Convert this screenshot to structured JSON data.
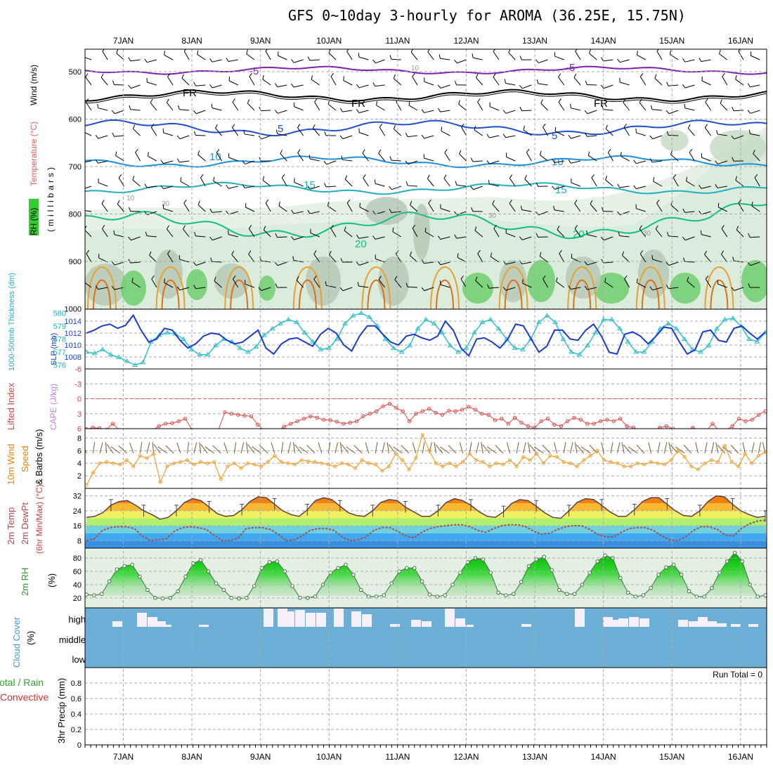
{
  "title": "GFS 0~10day 3-hourly for AROMA (36.25E, 15.75N)",
  "days": [
    "7JAN",
    "8JAN",
    "9JAN",
    "10JAN",
    "11JAN",
    "12JAN",
    "13JAN",
    "14JAN",
    "15JAN",
    "16JAN"
  ],
  "panels": {
    "upper": {
      "ylabel_rh": "RH (%)",
      "ylabel_temp": "Temperature (°C)",
      "ylabel_wind": "Wind (m/s)",
      "ylabel_p": "(millibars)",
      "p_ticks": [
        500,
        600,
        700,
        800,
        900,
        1000
      ],
      "isotherm_labels": [
        "-5",
        "FR",
        "5",
        "10",
        "15",
        "20"
      ],
      "rh_labels": [
        "10",
        "30"
      ]
    },
    "slp": {
      "ylabel_thick": "1000-500mb Thickness (dm)",
      "ylabel_slp": "SLP (mb)",
      "left_ticks": [
        576,
        577,
        578,
        579,
        580
      ],
      "right_ticks": [
        1008,
        1010,
        1012,
        1014
      ]
    },
    "cape": {
      "ylabel_li": "Lifted Index",
      "ylabel_cape": "CAPE (J/kg)",
      "ticks": [
        6,
        3,
        0,
        -3,
        -6
      ],
      "li_values": [
        6.1,
        5.8,
        5.9,
        6.2,
        5.0,
        6.3,
        6.4,
        6.5,
        6.5,
        6.4,
        6.3,
        5.5,
        5.0,
        4.9,
        4.5,
        4.0,
        6.2,
        6.4,
        6.3,
        6.5,
        6.3,
        2.7,
        3.0,
        3.2,
        3.4,
        3.5,
        5.2,
        6.4,
        6.3,
        6.4,
        5.6,
        5.0,
        4.5,
        4.0,
        3.5,
        3.8,
        4.2,
        4.3,
        4.6,
        5.0,
        4.8,
        4.5,
        3.5,
        3.0,
        2.5,
        1.5,
        1.0,
        1.8,
        2.5,
        4.5,
        3.0,
        2.5,
        2.0,
        2.8,
        3.2,
        2.4,
        2.5,
        2.2,
        1.6,
        2.2,
        3.0,
        3.2,
        4.3,
        4.0,
        5.0,
        3.8,
        4.8,
        5.5,
        5.8,
        4.5,
        4.0,
        5.2,
        5.5,
        4.5,
        3.8,
        4.2,
        5.0,
        5.0,
        4.5,
        4.2,
        4.5,
        4.0,
        5.5,
        5.8,
        6.4,
        6.5,
        6.3,
        5.8,
        5.5,
        6.0,
        6.4,
        6.4,
        5.8,
        6.3,
        6.5,
        5.0,
        6.4,
        6.3,
        5.5,
        4.0,
        4.5,
        4.2,
        3.2,
        2.5
      ]
    },
    "wind10m": {
      "ylabel_a": "10m Wind",
      "ylabel_b": "Speed",
      "ylabel_c": "& Barbs (m/s)",
      "ticks": [
        2,
        4,
        6,
        8
      ],
      "values": [
        0.5,
        2.5,
        4.0,
        4.2,
        4.0,
        3.8,
        4.5,
        3.5,
        5.2,
        4.8,
        5.5,
        1.0,
        3.5,
        4.0,
        4.2,
        4.5,
        3.8,
        4.2,
        4.0,
        4.2,
        1.5,
        3.5,
        4.0,
        3.2,
        4.0,
        3.8,
        3.5,
        4.2,
        5.2,
        4.2,
        4.0,
        3.8,
        4.5,
        4.3,
        4.2,
        4.0,
        3.8,
        3.5,
        4.0,
        3.8,
        3.2,
        4.5,
        4.0,
        3.8,
        2.8,
        3.5,
        5.5,
        4.5,
        3.0,
        4.8,
        8.5,
        6.0,
        4.0,
        3.5,
        4.0,
        3.5,
        4.2,
        5.5,
        4.5,
        4.2,
        3.5,
        4.0,
        3.8,
        4.5,
        3.5,
        5.0,
        4.5,
        5.5,
        4.0,
        5.2,
        5.0,
        4.2,
        4.0,
        3.5,
        4.5,
        5.2,
        6.0,
        4.5,
        4.2,
        4.0,
        3.5,
        3.5,
        4.0,
        3.8,
        4.2,
        4.0,
        3.8,
        4.5,
        6.0,
        5.0,
        3.5,
        3.0,
        4.0,
        4.5,
        4.2,
        6.8,
        4.2,
        3.5,
        5.5,
        4.0,
        5.2,
        5.8
      ]
    },
    "temp": {
      "ylabel_a": "2m Temp",
      "ylabel_b": "2m DewPt",
      "ylabel_c": "(6hr Min/Max) (°C)",
      "ticks": [
        8,
        16,
        24,
        32
      ]
    },
    "rh2m": {
      "ylabel": "2m RH",
      "unit": "(%)",
      "ticks": [
        20,
        40,
        60,
        80
      ],
      "values": [
        25,
        24,
        26,
        45,
        63,
        68,
        70,
        52,
        32,
        20,
        19,
        20,
        30,
        52,
        72,
        77,
        60,
        42,
        32,
        20,
        19,
        20,
        38,
        65,
        74,
        75,
        60,
        38,
        20,
        20,
        22,
        40,
        58,
        65,
        70,
        55,
        32,
        22,
        22,
        24,
        42,
        60,
        65,
        65,
        45,
        25,
        22,
        24,
        40,
        58,
        74,
        80,
        78,
        58,
        28,
        24,
        26,
        44,
        68,
        78,
        82,
        62,
        32,
        26,
        26,
        40,
        58,
        75,
        84,
        80,
        50,
        28,
        22,
        24,
        35,
        55,
        66,
        70,
        55,
        30,
        22,
        22,
        35,
        58,
        75,
        88,
        75,
        40,
        22,
        24
      ]
    },
    "cloud": {
      "ylabel_a": "Cloud Cover",
      "ylabel_b": "(%)",
      "levels": [
        "high",
        "middle",
        "low"
      ]
    },
    "precip": {
      "ylabel_a": "Total / Rain",
      "ylabel_b": "Convective",
      "ylabel_c": "3hr Precip (mm)",
      "ticks": [
        0,
        0.2,
        0.4,
        0.6,
        0.8
      ],
      "run_total": "Run Total = 0"
    }
  },
  "chart_data": [
    {
      "type": "line",
      "title": "SLP (mb) and 1000-500mb Thickness (dm)",
      "series": [
        {
          "name": "SLP (mb)",
          "ylim": [
            1006,
            1016
          ],
          "values": [
            1012.0,
            1012.5,
            1013.2,
            1013.5,
            1012.8,
            1013.3,
            1015.0,
            1012.5,
            1010.5,
            1011.0,
            1012.8,
            1012.5,
            1010.8,
            1009.5,
            1010.2,
            1011.5,
            1012.0,
            1011.8,
            1010.8,
            1010.2,
            1010.5,
            1011.5,
            1012.5,
            1009.5,
            1008.5,
            1010.2,
            1011.0,
            1011.2,
            1010.5,
            1009.8,
            1011.8,
            1012.8,
            1012.0,
            1010.0,
            1009.0,
            1011.5,
            1013.2,
            1013.2,
            1011.8,
            1010.5,
            1010.0,
            1011.5,
            1011.8,
            1011.2,
            1010.8,
            1011.5,
            1014.0,
            1012.5,
            1009.5,
            1008.2,
            1011.0,
            1011.2,
            1010.5,
            1009.5,
            1011.0,
            1013.5,
            1013.2,
            1011.0,
            1008.8,
            1009.8,
            1012.5,
            1012.5,
            1011.0,
            1010.8,
            1012.5,
            1013.5,
            1011.5,
            1008.8,
            1008.5,
            1011.8,
            1012.2,
            1011.5,
            1010.2,
            1011.5,
            1013.0,
            1012.8,
            1010.5,
            1008.5,
            1009.2,
            1012.2,
            1012.5,
            1010.8,
            1010.5,
            1012.8,
            1013.2,
            1012.0,
            1011.0,
            1012.2
          ]
        },
        {
          "name": "1000-500mb Thickness (dm)",
          "ylim": [
            575.7,
            580.3
          ],
          "values": [
            577.0,
            576.9,
            577.2,
            576.8,
            576.6,
            576.3,
            576.0,
            576.2,
            577.8,
            578.3,
            578.5,
            578.4,
            578.0,
            577.2,
            576.8,
            576.8,
            577.5,
            578.0,
            577.8,
            577.3,
            577.0,
            577.4,
            578.3,
            578.8,
            579.2,
            579.5,
            579.3,
            578.5,
            577.8,
            577.2,
            577.3,
            578.0,
            579.2,
            579.8,
            580.0,
            579.7,
            579.0,
            578.0,
            577.3,
            577.0,
            577.5,
            578.8,
            579.5,
            579.2,
            578.5,
            577.5,
            577.0,
            577.3,
            578.5,
            579.3,
            579.5,
            578.8,
            578.0,
            577.3,
            577.2,
            578.0,
            579.3,
            579.8,
            579.3,
            578.0,
            577.0,
            576.8,
            577.5,
            578.5,
            579.5,
            579.5,
            578.8,
            577.8,
            577.0,
            577.0,
            577.8,
            578.8,
            579.2,
            578.8,
            578.0,
            577.2,
            577.0,
            577.5,
            578.8,
            579.5,
            579.6,
            579.0,
            578.0,
            577.8,
            578.5
          ]
        }
      ]
    },
    {
      "type": "area",
      "title": "2m Temp / 2m DewPt (°C)",
      "ylim": [
        4,
        36
      ],
      "series": [
        {
          "name": "2m Temp",
          "values": [
            20.5,
            21,
            23,
            27,
            29,
            29.5,
            27,
            24,
            22,
            19.5,
            20.5,
            24,
            28.5,
            30.5,
            29.5,
            26,
            22.5,
            21,
            21.5,
            24.5,
            29,
            31.5,
            31,
            27.5,
            24,
            22,
            21,
            24.5,
            29.5,
            31,
            30,
            26.5,
            23,
            21.5,
            21,
            24,
            28.5,
            30,
            29.5,
            26,
            23.5,
            21,
            21,
            24,
            28.5,
            30.5,
            29.5,
            27,
            23.5,
            21,
            20.5,
            23.5,
            28,
            30,
            29.5,
            26.5,
            23,
            20.5,
            20,
            24,
            28.5,
            30.5,
            30,
            27,
            23.5,
            21,
            21,
            24.5,
            29,
            31,
            31,
            27.5,
            24,
            21.5,
            21,
            24,
            29,
            32,
            31.5,
            27.5,
            24,
            22,
            20.5,
            21
          ]
        },
        {
          "name": "2m DewPt",
          "values": [
            8,
            9,
            13.5,
            15,
            15.5,
            15.5,
            14.5,
            10.5,
            8,
            8.5,
            9,
            13,
            15,
            15.5,
            15,
            14,
            11,
            8,
            8,
            9.5,
            14.5,
            15,
            15,
            14,
            11.5,
            8,
            8.5,
            10.5,
            13.5,
            14.5,
            14.5,
            13.5,
            10,
            8,
            8.5,
            10,
            13.5,
            15,
            15,
            13,
            10.5,
            9.5,
            12.5,
            14.5,
            15.5,
            16,
            16.5,
            16.5,
            15.5,
            13.5,
            12.5,
            14.5,
            16,
            16.5,
            16.5,
            15.5,
            13,
            11.5,
            12,
            14,
            15.5,
            16,
            16,
            14,
            11.5,
            10,
            10,
            12.5,
            14.5,
            15,
            15,
            13.5,
            10.5,
            8.5,
            8,
            10,
            13.5,
            15.5,
            15.5,
            14,
            11,
            10.5,
            14.5,
            17,
            18.5,
            19
          ]
        }
      ]
    },
    {
      "type": "bar",
      "title": "3hr Precip (mm)",
      "ylim": [
        0,
        1
      ],
      "values": []
    }
  ]
}
